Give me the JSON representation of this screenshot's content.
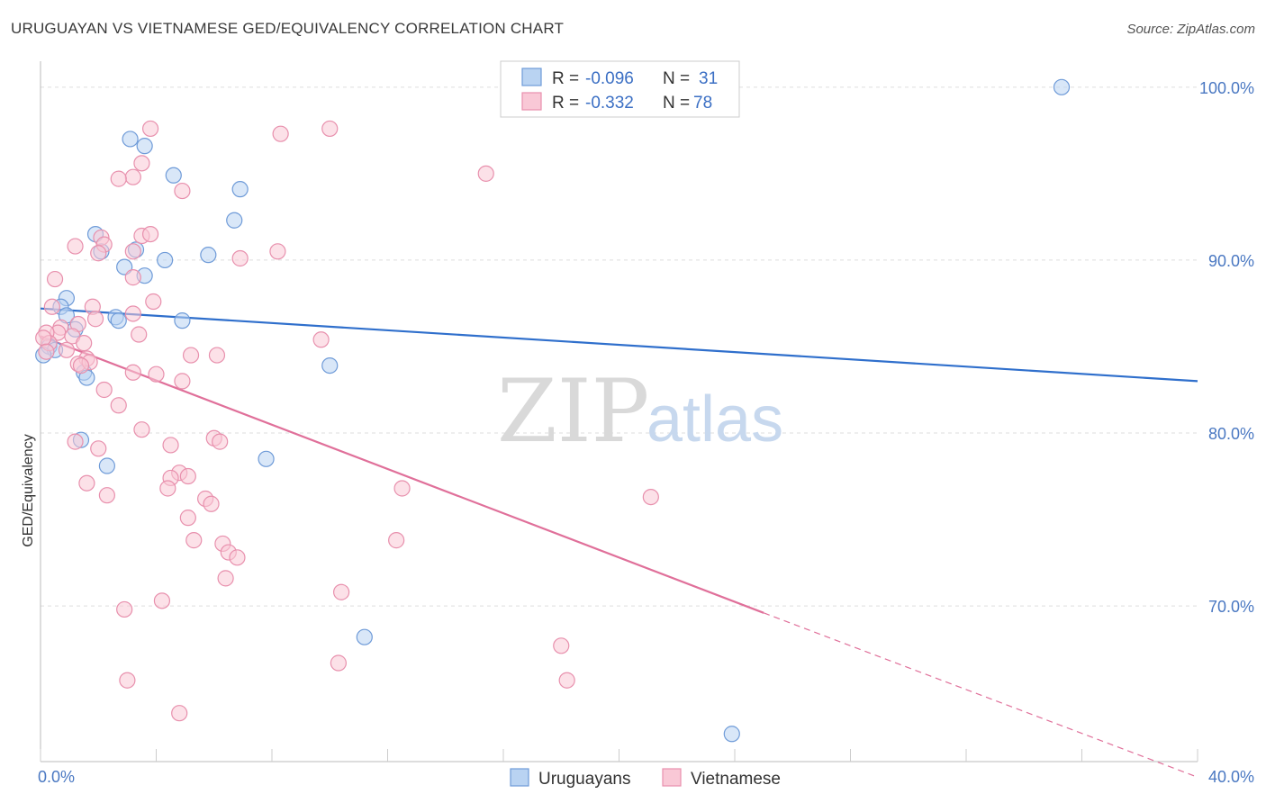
{
  "header": {
    "title": "URUGUAYAN VS VIETNAMESE GED/EQUIVALENCY CORRELATION CHART",
    "source": "Source: ZipAtlas.com"
  },
  "watermark": {
    "zip": "ZIP",
    "atlas": "atlas"
  },
  "legend": {
    "r_label": "R =",
    "n_label": "N =",
    "entries": [
      {
        "r": "-0.096",
        "n": "31",
        "fill": "#b9d3f2",
        "stroke": "#6f9bd8"
      },
      {
        "r": "-0.332",
        "n": "78",
        "fill": "#f9c8d6",
        "stroke": "#e890ad"
      }
    ]
  },
  "chart_data": {
    "type": "scatter",
    "title": "URUGUAYAN VS VIETNAMESE GED/EQUIVALENCY CORRELATION CHART",
    "xlabel": "",
    "ylabel": "GED/Equivalency",
    "xlim": [
      0,
      40
    ],
    "ylim": [
      61,
      101.5
    ],
    "x_tick_labels": [
      "0.0%",
      "40.0%"
    ],
    "y_ticks": [
      70,
      80,
      90,
      100
    ],
    "y_tick_labels": [
      "70.0%",
      "80.0%",
      "90.0%",
      "100.0%"
    ],
    "grid": true,
    "legend_position": "top-center",
    "series": [
      {
        "name": "Uruguayans",
        "color": "#6f9bd8",
        "fill": "#b9d3f2",
        "trend": {
          "x": [
            0,
            40
          ],
          "y": [
            87.2,
            83.0
          ],
          "color": "#2f6fcc"
        },
        "points": [
          [
            3.1,
            97.0
          ],
          [
            3.6,
            96.6
          ],
          [
            4.6,
            94.9
          ],
          [
            6.9,
            94.1
          ],
          [
            6.7,
            92.3
          ],
          [
            1.9,
            91.5
          ],
          [
            3.3,
            90.6
          ],
          [
            4.3,
            90.0
          ],
          [
            5.8,
            90.3
          ],
          [
            2.1,
            90.5
          ],
          [
            3.6,
            89.1
          ],
          [
            2.9,
            89.6
          ],
          [
            0.9,
            87.8
          ],
          [
            0.7,
            87.3
          ],
          [
            0.9,
            86.8
          ],
          [
            2.6,
            86.7
          ],
          [
            2.7,
            86.5
          ],
          [
            4.9,
            86.5
          ],
          [
            1.2,
            86.0
          ],
          [
            0.3,
            85.0
          ],
          [
            0.5,
            84.8
          ],
          [
            0.1,
            84.5
          ],
          [
            1.5,
            83.5
          ],
          [
            1.6,
            83.2
          ],
          [
            10.0,
            83.9
          ],
          [
            1.4,
            79.6
          ],
          [
            2.3,
            78.1
          ],
          [
            7.8,
            78.5
          ],
          [
            11.2,
            68.2
          ],
          [
            23.9,
            62.6
          ],
          [
            35.3,
            100.0
          ]
        ]
      },
      {
        "name": "Vietnamese",
        "color": "#e890ad",
        "fill": "#f9c8d6",
        "trend": {
          "x": [
            0,
            25
          ],
          "y": [
            85.6,
            69.6
          ],
          "dash_x": [
            25,
            40
          ],
          "dash_y": [
            69.6,
            60.1
          ],
          "color": "#e0709a"
        },
        "points": [
          [
            3.8,
            97.6
          ],
          [
            8.3,
            97.3
          ],
          [
            10.0,
            97.6
          ],
          [
            3.5,
            95.6
          ],
          [
            3.2,
            94.8
          ],
          [
            2.7,
            94.7
          ],
          [
            4.9,
            94.0
          ],
          [
            15.4,
            95.0
          ],
          [
            2.1,
            91.3
          ],
          [
            3.5,
            91.4
          ],
          [
            3.8,
            91.5
          ],
          [
            2.2,
            90.9
          ],
          [
            1.2,
            90.8
          ],
          [
            2.0,
            90.4
          ],
          [
            3.2,
            90.5
          ],
          [
            6.9,
            90.1
          ],
          [
            8.2,
            90.5
          ],
          [
            0.5,
            88.9
          ],
          [
            3.2,
            89.0
          ],
          [
            1.8,
            87.3
          ],
          [
            3.9,
            87.6
          ],
          [
            3.2,
            86.9
          ],
          [
            1.9,
            86.6
          ],
          [
            0.4,
            87.3
          ],
          [
            0.7,
            86.1
          ],
          [
            1.3,
            86.3
          ],
          [
            0.6,
            85.8
          ],
          [
            0.2,
            85.8
          ],
          [
            1.1,
            85.6
          ],
          [
            3.4,
            85.7
          ],
          [
            0.3,
            85.2
          ],
          [
            9.7,
            85.4
          ],
          [
            1.5,
            85.2
          ],
          [
            0.9,
            84.8
          ],
          [
            5.2,
            84.5
          ],
          [
            6.1,
            84.5
          ],
          [
            1.6,
            84.3
          ],
          [
            1.3,
            84.0
          ],
          [
            1.7,
            84.1
          ],
          [
            1.4,
            83.9
          ],
          [
            3.2,
            83.5
          ],
          [
            4.0,
            83.4
          ],
          [
            4.9,
            83.0
          ],
          [
            2.2,
            82.5
          ],
          [
            2.7,
            81.6
          ],
          [
            3.5,
            80.2
          ],
          [
            6.0,
            79.7
          ],
          [
            6.2,
            79.5
          ],
          [
            1.2,
            79.5
          ],
          [
            2.0,
            79.1
          ],
          [
            4.5,
            79.3
          ],
          [
            4.8,
            77.7
          ],
          [
            4.5,
            77.4
          ],
          [
            5.1,
            77.5
          ],
          [
            1.6,
            77.1
          ],
          [
            4.4,
            76.8
          ],
          [
            12.5,
            76.8
          ],
          [
            2.3,
            76.4
          ],
          [
            5.7,
            76.2
          ],
          [
            5.9,
            75.9
          ],
          [
            21.1,
            76.3
          ],
          [
            5.1,
            75.1
          ],
          [
            5.3,
            73.8
          ],
          [
            6.3,
            73.6
          ],
          [
            6.5,
            73.1
          ],
          [
            6.8,
            72.8
          ],
          [
            12.3,
            73.8
          ],
          [
            6.4,
            71.6
          ],
          [
            10.4,
            70.8
          ],
          [
            4.2,
            70.3
          ],
          [
            2.9,
            69.8
          ],
          [
            18.0,
            67.7
          ],
          [
            10.3,
            66.7
          ],
          [
            18.2,
            65.7
          ],
          [
            3.0,
            65.7
          ],
          [
            4.8,
            63.8
          ],
          [
            0.1,
            85.5
          ],
          [
            0.2,
            84.7
          ]
        ]
      }
    ]
  }
}
